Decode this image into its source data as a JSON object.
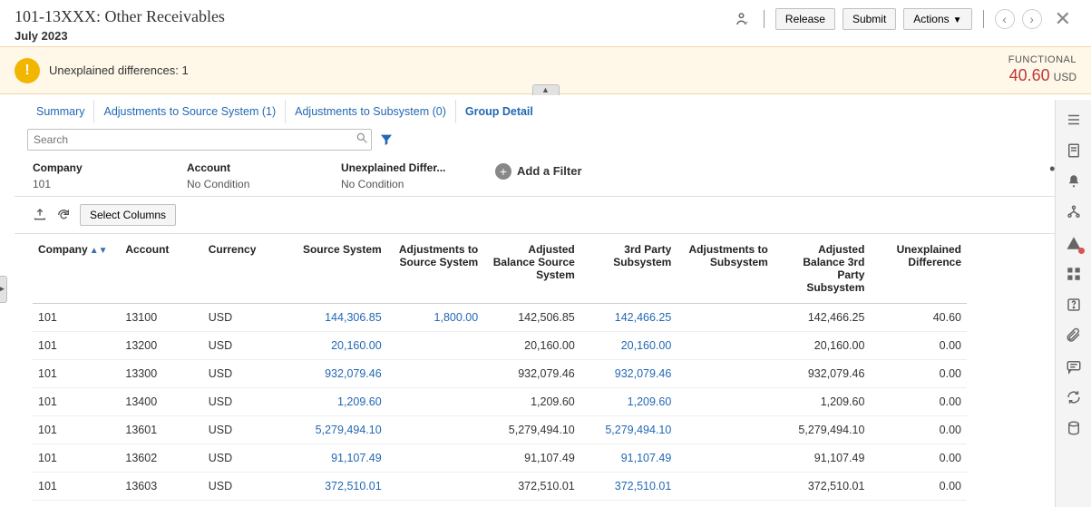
{
  "header": {
    "title": "101-13XXX: Other Receivables",
    "subtitle": "July 2023",
    "release": "Release",
    "submit": "Submit",
    "actions": "Actions"
  },
  "banner": {
    "message": "Unexplained differences: 1",
    "functional_label": "FUNCTIONAL",
    "amount": "40.60",
    "currency": "USD"
  },
  "tabs": {
    "summary": "Summary",
    "adj_source": "Adjustments to Source System (1)",
    "adj_sub": "Adjustments to Subsystem (0)",
    "group_detail": "Group Detail"
  },
  "search": {
    "placeholder": "Search"
  },
  "filters": {
    "company": {
      "label": "Company",
      "value": "101"
    },
    "account": {
      "label": "Account",
      "value": "No Condition"
    },
    "unexplained": {
      "label": "Unexplained Differ...",
      "value": "No Condition"
    },
    "add": "Add a Filter"
  },
  "toolbar": {
    "select_columns": "Select Columns"
  },
  "columns": {
    "company": "Company",
    "account": "Account",
    "currency": "Currency",
    "source_system": "Source System",
    "adj_source": "Adjustments to Source System",
    "adj_bal_source": "Adjusted Balance Source System",
    "third_party": "3rd Party Subsystem",
    "adj_sub": "Adjustments to Subsystem",
    "adj_bal_3rd": "Adjusted Balance 3rd Party Subsystem",
    "unexplained": "Unexplained Difference"
  },
  "rows": [
    {
      "company": "101",
      "account": "13100",
      "currency": "USD",
      "source_system": "144,306.85",
      "adj_source": "1,800.00",
      "adj_bal_source": "142,506.85",
      "third_party": "142,466.25",
      "adj_sub": "",
      "adj_bal_3rd": "142,466.25",
      "unexplained": "40.60"
    },
    {
      "company": "101",
      "account": "13200",
      "currency": "USD",
      "source_system": "20,160.00",
      "adj_source": "",
      "adj_bal_source": "20,160.00",
      "third_party": "20,160.00",
      "adj_sub": "",
      "adj_bal_3rd": "20,160.00",
      "unexplained": "0.00"
    },
    {
      "company": "101",
      "account": "13300",
      "currency": "USD",
      "source_system": "932,079.46",
      "adj_source": "",
      "adj_bal_source": "932,079.46",
      "third_party": "932,079.46",
      "adj_sub": "",
      "adj_bal_3rd": "932,079.46",
      "unexplained": "0.00"
    },
    {
      "company": "101",
      "account": "13400",
      "currency": "USD",
      "source_system": "1,209.60",
      "adj_source": "",
      "adj_bal_source": "1,209.60",
      "third_party": "1,209.60",
      "adj_sub": "",
      "adj_bal_3rd": "1,209.60",
      "unexplained": "0.00"
    },
    {
      "company": "101",
      "account": "13601",
      "currency": "USD",
      "source_system": "5,279,494.10",
      "adj_source": "",
      "adj_bal_source": "5,279,494.10",
      "third_party": "5,279,494.10",
      "adj_sub": "",
      "adj_bal_3rd": "5,279,494.10",
      "unexplained": "0.00"
    },
    {
      "company": "101",
      "account": "13602",
      "currency": "USD",
      "source_system": "91,107.49",
      "adj_source": "",
      "adj_bal_source": "91,107.49",
      "third_party": "91,107.49",
      "adj_sub": "",
      "adj_bal_3rd": "91,107.49",
      "unexplained": "0.00"
    },
    {
      "company": "101",
      "account": "13603",
      "currency": "USD",
      "source_system": "372,510.01",
      "adj_source": "",
      "adj_bal_source": "372,510.01",
      "third_party": "372,510.01",
      "adj_sub": "",
      "adj_bal_3rd": "372,510.01",
      "unexplained": "0.00"
    }
  ],
  "colors": {
    "link": "#2268b3",
    "warn": "#f2b600",
    "banner_bg": "#fff7e8",
    "amount": "#c23838",
    "border": "#c0c0c0"
  }
}
